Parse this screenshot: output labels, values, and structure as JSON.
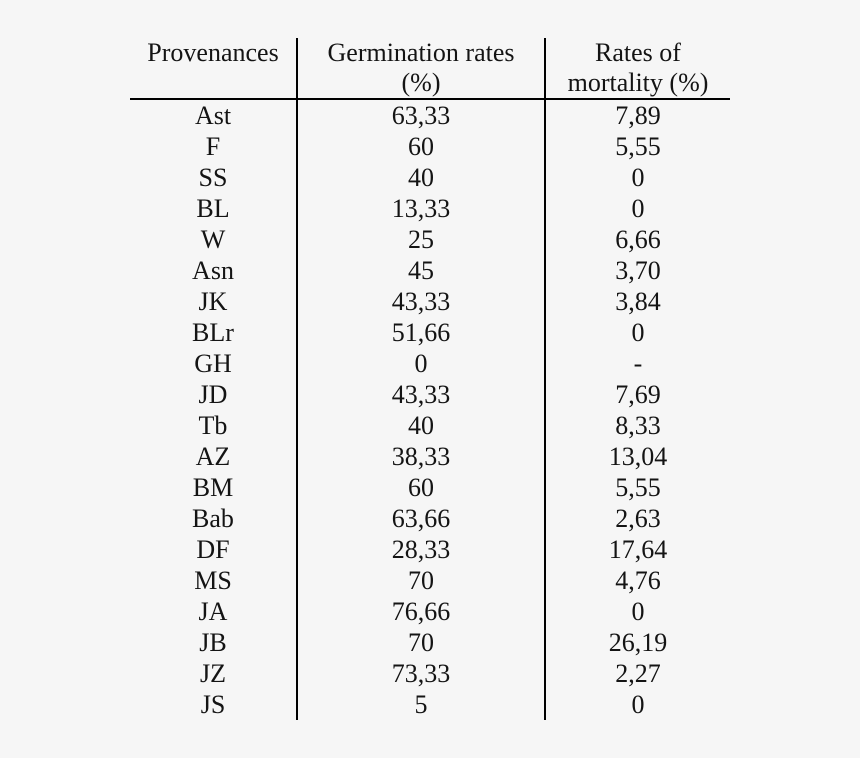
{
  "page": {
    "background": "#f6f6f6",
    "text_color": "#141414",
    "rule_color": "#000000"
  },
  "chart_data": {
    "type": "table",
    "title": "",
    "columns": [
      "Provenances",
      "Germination rates (%)",
      "Rates of mortality (%)"
    ],
    "header": [
      {
        "line1": "Provenances",
        "line2": ""
      },
      {
        "line1": "Germination rates",
        "line2": "(%)"
      },
      {
        "line1": "Rates of",
        "line2": "mortality (%)"
      }
    ],
    "rows": [
      [
        "Ast",
        "63,33",
        "7,89"
      ],
      [
        "F",
        "60",
        "5,55"
      ],
      [
        "SS",
        "40",
        "0"
      ],
      [
        "BL",
        "13,33",
        "0"
      ],
      [
        "W",
        "25",
        "6,66"
      ],
      [
        "Asn",
        "45",
        "3,70"
      ],
      [
        "JK",
        "43,33",
        "3,84"
      ],
      [
        "BLr",
        "51,66",
        "0"
      ],
      [
        "GH",
        "0",
        "-"
      ],
      [
        "JD",
        "43,33",
        "7,69"
      ],
      [
        "Tb",
        "40",
        "8,33"
      ],
      [
        "AZ",
        "38,33",
        "13,04"
      ],
      [
        "BM",
        "60",
        "5,55"
      ],
      [
        "Bab",
        "63,66",
        "2,63"
      ],
      [
        "DF",
        "28,33",
        "17,64"
      ],
      [
        "MS",
        "70",
        "4,76"
      ],
      [
        "JA",
        "76,66",
        "0"
      ],
      [
        "JB",
        "70",
        "26,19"
      ],
      [
        "JZ",
        "73,33",
        "2,27"
      ],
      [
        "JS",
        "5",
        "0"
      ]
    ],
    "layout": {
      "grid": "vertical rules between columns, single horizontal rule under header, no outer border",
      "decimal_separator": ","
    }
  }
}
